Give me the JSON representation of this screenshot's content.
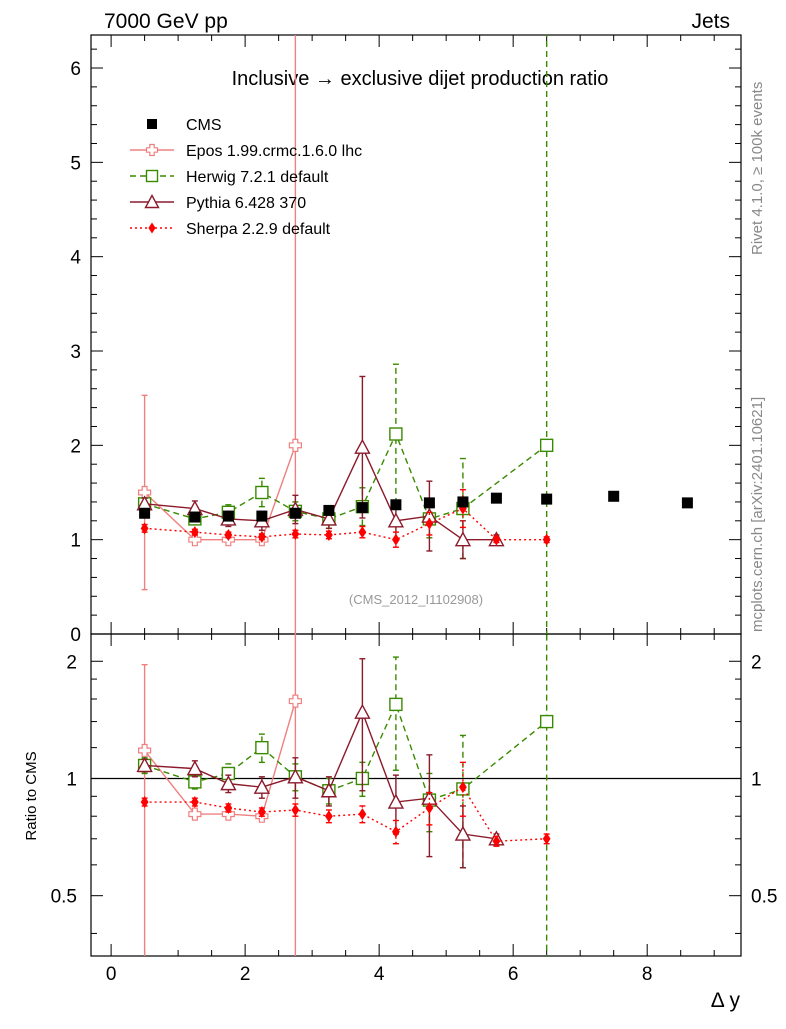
{
  "header": {
    "left": "7000 GeV pp",
    "right": "Jets",
    "side_top": "Rivet 4.1.0, ≥ 100k events",
    "side_bottom": "mcplots.cern.ch [arXiv:2401.10621]"
  },
  "colors": {
    "cms": "#000000",
    "epos": "#f08080",
    "herwig": "#3a8a00",
    "pythia": "#8b1a2b",
    "sherpa": "#ff0000"
  },
  "chart_data": [
    {
      "type": "line",
      "panel": "main",
      "title": "Inclusive → exclusive dijet production ratio",
      "annotation": "(CMS_2012_I1102908)",
      "xlabel": "",
      "ylabel": "",
      "xlim": [
        -0.3,
        9.4
      ],
      "ylim": [
        0,
        6.35
      ],
      "y_ticks": [
        "0",
        "1",
        "2",
        "3",
        "4",
        "5",
        "6"
      ],
      "legend_position": "top-left",
      "series": [
        {
          "name": "CMS",
          "key": "cms",
          "marker": "square-filled",
          "x": [
            0.5,
            1.25,
            1.75,
            2.25,
            2.75,
            3.25,
            3.75,
            4.25,
            4.75,
            5.25,
            5.75,
            6.5,
            7.5,
            8.6
          ],
          "y": [
            1.28,
            1.24,
            1.25,
            1.25,
            1.28,
            1.31,
            1.34,
            1.37,
            1.39,
            1.4,
            1.44,
            1.43,
            1.46,
            1.39
          ],
          "err": [
            0.03,
            0.02,
            0.02,
            0.02,
            0.02,
            0.02,
            0.03,
            0.03,
            0.03,
            0.04,
            0.04,
            0.04,
            0.05,
            0.05
          ]
        },
        {
          "name": "Epos 1.99.crmc.1.6.0 lhc",
          "key": "epos",
          "marker": "cross-open",
          "line": "solid",
          "x": [
            0.5,
            1.25,
            1.75,
            2.25,
            2.75
          ],
          "y": [
            1.5,
            1.0,
            1.0,
            1.0,
            2.0
          ],
          "err": [
            1.03,
            0.02,
            0.02,
            0.02,
            4.6
          ]
        },
        {
          "name": "Herwig 7.2.1 default",
          "key": "herwig",
          "marker": "square-open",
          "line": "dashed",
          "x": [
            0.5,
            1.25,
            1.75,
            2.25,
            2.75,
            3.25,
            3.75,
            4.25,
            4.75,
            5.25,
            6.5
          ],
          "y": [
            1.38,
            1.22,
            1.29,
            1.5,
            1.3,
            1.22,
            1.35,
            2.12,
            1.22,
            1.33,
            2.0
          ],
          "err": [
            0.06,
            0.05,
            0.08,
            0.15,
            0.1,
            0.1,
            0.2,
            0.74,
            0.2,
            0.53,
            5.0
          ]
        },
        {
          "name": "Pythia 6.428 370",
          "key": "pythia",
          "marker": "triangle-open",
          "line": "solid",
          "x": [
            0.5,
            1.25,
            1.75,
            2.25,
            2.75,
            3.25,
            3.75,
            4.25,
            4.75,
            5.25,
            5.75
          ],
          "y": [
            1.38,
            1.33,
            1.22,
            1.2,
            1.32,
            1.22,
            1.98,
            1.2,
            1.25,
            1.0,
            1.0
          ],
          "err": [
            0.06,
            0.08,
            0.08,
            0.1,
            0.15,
            0.1,
            0.75,
            0.2,
            0.37,
            0.2,
            0.05
          ]
        },
        {
          "name": "Sherpa 2.2.9 default",
          "key": "sherpa",
          "marker": "diamond-filled",
          "line": "dotted",
          "x": [
            0.5,
            1.25,
            1.75,
            2.25,
            2.75,
            3.25,
            3.75,
            4.25,
            4.75,
            5.25,
            5.75,
            6.5
          ],
          "y": [
            1.12,
            1.08,
            1.05,
            1.03,
            1.06,
            1.05,
            1.08,
            1.0,
            1.17,
            1.33,
            1.0,
            1.0
          ],
          "err": [
            0.04,
            0.03,
            0.03,
            0.03,
            0.04,
            0.04,
            0.06,
            0.08,
            0.12,
            0.2,
            0.03,
            0.03
          ]
        }
      ]
    },
    {
      "type": "line",
      "panel": "ratio",
      "ylabel": "Ratio to CMS",
      "xlabel": "Δ y",
      "xlim": [
        -0.3,
        9.4
      ],
      "ylim": [
        0.35,
        2.35
      ],
      "y_scale": "log",
      "x_ticks": [
        "0",
        "2",
        "4",
        "6",
        "8"
      ],
      "y_ticks": [
        "0.5",
        "1",
        "2"
      ],
      "reference_line": 1,
      "series": [
        {
          "name": "Epos 1.99.crmc.1.6.0 lhc",
          "key": "epos",
          "marker": "cross-open",
          "line": "solid",
          "x": [
            0.5,
            1.25,
            1.75,
            2.25,
            2.75
          ],
          "y": [
            1.18,
            0.81,
            0.81,
            0.8,
            1.58
          ],
          "err_lo": [
            0.85,
            0.02,
            0.02,
            0.02,
            1.3
          ],
          "err_hi": [
            0.78,
            0.02,
            0.02,
            0.02,
            3.0
          ]
        },
        {
          "name": "Herwig 7.2.1 default",
          "key": "herwig",
          "marker": "square-open",
          "line": "dashed",
          "x": [
            0.5,
            1.25,
            1.75,
            2.25,
            2.75,
            3.25,
            3.75,
            4.25,
            4.75,
            5.25,
            6.5
          ],
          "y": [
            1.08,
            0.98,
            1.03,
            1.2,
            1.01,
            0.93,
            1.0,
            1.55,
            0.88,
            0.94,
            1.4
          ],
          "err_lo": [
            0.05,
            0.04,
            0.06,
            0.1,
            0.08,
            0.07,
            0.1,
            0.5,
            0.15,
            0.35,
            1.2
          ],
          "err_hi": [
            0.05,
            0.04,
            0.06,
            0.1,
            0.08,
            0.07,
            0.1,
            0.5,
            0.15,
            0.35,
            3.0
          ]
        },
        {
          "name": "Pythia 6.428 370",
          "key": "pythia",
          "marker": "triangle-open",
          "line": "solid",
          "x": [
            0.5,
            1.25,
            1.75,
            2.25,
            2.75,
            3.25,
            3.75,
            4.25,
            4.75,
            5.25,
            5.75
          ],
          "y": [
            1.08,
            1.06,
            0.97,
            0.95,
            1.01,
            0.93,
            1.48,
            0.87,
            0.89,
            0.72,
            0.7
          ],
          "err_lo": [
            0.04,
            0.05,
            0.05,
            0.06,
            0.12,
            0.08,
            0.55,
            0.15,
            0.26,
            0.13,
            0.02
          ],
          "err_hi": [
            0.04,
            0.05,
            0.05,
            0.06,
            0.12,
            0.08,
            0.55,
            0.15,
            0.26,
            0.13,
            0.02
          ]
        },
        {
          "name": "Sherpa 2.2.9 default",
          "key": "sherpa",
          "marker": "diamond-filled",
          "line": "dotted",
          "x": [
            0.5,
            1.25,
            1.75,
            2.25,
            2.75,
            3.25,
            3.75,
            4.25,
            4.75,
            5.25,
            5.75,
            6.5
          ],
          "y": [
            0.87,
            0.87,
            0.84,
            0.82,
            0.83,
            0.8,
            0.81,
            0.73,
            0.84,
            0.95,
            0.69,
            0.7
          ],
          "err_lo": [
            0.02,
            0.02,
            0.02,
            0.02,
            0.03,
            0.03,
            0.04,
            0.05,
            0.08,
            0.15,
            0.02,
            0.02
          ],
          "err_hi": [
            0.02,
            0.02,
            0.02,
            0.02,
            0.03,
            0.03,
            0.04,
            0.05,
            0.08,
            0.15,
            0.02,
            0.02
          ]
        }
      ]
    }
  ]
}
